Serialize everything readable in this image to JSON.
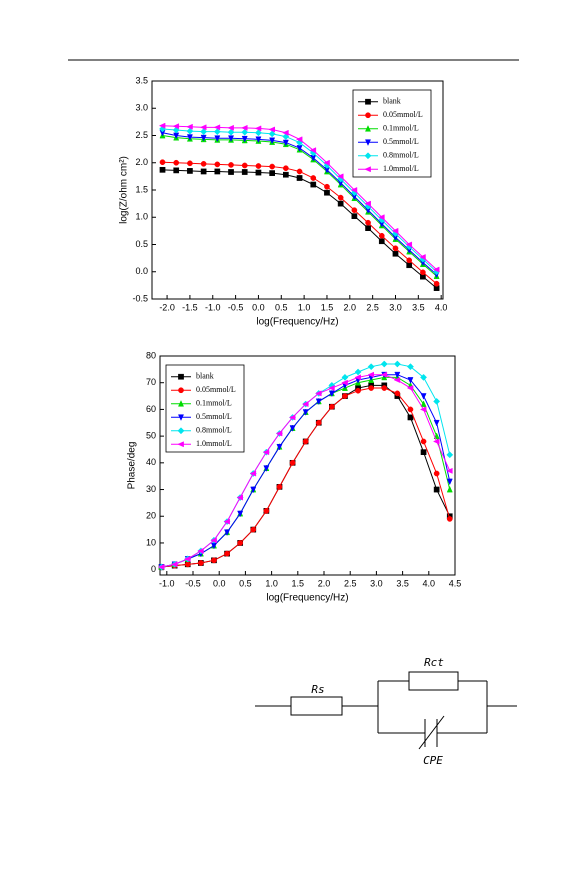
{
  "chart_data": [
    {
      "type": "line",
      "xlabel": "log(Frequency/Hz)",
      "ylabel": "log(Z/ohm cm²)",
      "xlim": [
        -2.33,
        4.04
      ],
      "ylim": [
        -0.5,
        3.5
      ],
      "xticks": [
        {
          "value": -2,
          "label": "-2.0"
        },
        -1.5,
        {
          "value": -1,
          "label": "-1.0"
        },
        -0.5,
        {
          "value": 0,
          "label": "0.0"
        },
        0.5,
        {
          "value": 1,
          "label": "1.0"
        },
        1.5,
        {
          "value": 2,
          "label": "2.0"
        },
        2.5,
        {
          "value": 3,
          "label": "3.0"
        },
        3.5,
        {
          "value": 4,
          "label": "4.0"
        }
      ],
      "yticks": [
        -0.5,
        {
          "value": 0,
          "label": "0.0"
        },
        0.5,
        {
          "value": 1,
          "label": "1.0"
        },
        1.5,
        {
          "value": 2,
          "label": "2.0"
        },
        2.5,
        {
          "value": 3,
          "label": "3.0"
        },
        3.5
      ],
      "legend": "upper right",
      "x": [
        -2.1,
        -1.8,
        -1.5,
        -1.2,
        -0.9,
        -0.6,
        -0.3,
        0,
        0.3,
        0.6,
        0.9,
        1.2,
        1.5,
        1.8,
        2.1,
        2.4,
        2.7,
        3.0,
        3.3,
        3.6,
        3.9
      ],
      "series": [
        {
          "name": "blank",
          "color": "#000000",
          "marker": "square",
          "values": [
            1.87,
            1.86,
            1.85,
            1.84,
            1.84,
            1.83,
            1.83,
            1.82,
            1.81,
            1.78,
            1.72,
            1.6,
            1.45,
            1.25,
            1.02,
            0.8,
            0.56,
            0.33,
            0.12,
            -0.09,
            -0.3
          ]
        },
        {
          "name": "0.05mmol/L",
          "color": "#ff0000",
          "marker": "circle",
          "values": [
            2.01,
            2.0,
            1.99,
            1.98,
            1.97,
            1.96,
            1.95,
            1.94,
            1.93,
            1.9,
            1.84,
            1.72,
            1.56,
            1.36,
            1.13,
            0.9,
            0.66,
            0.43,
            0.21,
            -0.01,
            -0.22
          ]
        },
        {
          "name": "0.1mmol/L",
          "color": "#00dd00",
          "marker": "triangle-up",
          "values": [
            2.5,
            2.46,
            2.44,
            2.43,
            2.42,
            2.42,
            2.41,
            2.4,
            2.38,
            2.34,
            2.24,
            2.06,
            1.84,
            1.6,
            1.35,
            1.1,
            0.85,
            0.6,
            0.37,
            0.14,
            -0.08
          ]
        },
        {
          "name": "0.5mmol/L",
          "color": "#0000ff",
          "marker": "triangle-down",
          "values": [
            2.55,
            2.5,
            2.47,
            2.46,
            2.45,
            2.45,
            2.44,
            2.43,
            2.41,
            2.37,
            2.27,
            2.09,
            1.87,
            1.63,
            1.38,
            1.13,
            0.88,
            0.63,
            0.4,
            0.17,
            -0.05
          ]
        },
        {
          "name": "0.8mmol/L",
          "color": "#00e5ee",
          "marker": "diamond",
          "values": [
            2.62,
            2.6,
            2.58,
            2.57,
            2.57,
            2.56,
            2.56,
            2.55,
            2.53,
            2.48,
            2.37,
            2.18,
            1.95,
            1.7,
            1.45,
            1.2,
            0.95,
            0.7,
            0.46,
            0.23,
            0.0
          ]
        },
        {
          "name": "1.0mmol/L",
          "color": "#ff00ff",
          "marker": "triangle-left",
          "values": [
            2.68,
            2.67,
            2.66,
            2.65,
            2.65,
            2.64,
            2.64,
            2.63,
            2.61,
            2.55,
            2.43,
            2.23,
            2.0,
            1.75,
            1.5,
            1.25,
            1.0,
            0.75,
            0.5,
            0.27,
            0.04
          ]
        }
      ]
    },
    {
      "type": "line",
      "xlabel": "log(Frequency/Hz)",
      "ylabel": "Phase/deg",
      "xlim": [
        -1.13,
        4.5
      ],
      "ylim": [
        -2,
        80
      ],
      "xticks": [
        {
          "value": -1,
          "label": "-1.0"
        },
        -0.5,
        {
          "value": 0,
          "label": "0.0"
        },
        0.5,
        {
          "value": 1,
          "label": "1.0"
        },
        1.5,
        {
          "value": 2,
          "label": "2.0"
        },
        2.5,
        {
          "value": 3,
          "label": "3.0"
        },
        3.5,
        {
          "value": 4,
          "label": "4.0"
        },
        4.5
      ],
      "yticks": [
        0,
        10,
        20,
        30,
        40,
        50,
        60,
        70,
        80
      ],
      "legend": "upper left",
      "x": [
        -1.1,
        -0.85,
        -0.6,
        -0.35,
        -0.1,
        0.15,
        0.4,
        0.65,
        0.9,
        1.15,
        1.4,
        1.65,
        1.9,
        2.15,
        2.4,
        2.65,
        2.9,
        3.15,
        3.4,
        3.65,
        3.9,
        4.15,
        4.4
      ],
      "series": [
        {
          "name": "blank",
          "color": "#000000",
          "marker": "square",
          "values": [
            1,
            1.5,
            2,
            2.5,
            3.5,
            6,
            10,
            15,
            22,
            31,
            40,
            48,
            55,
            61,
            65,
            68,
            69,
            69,
            65,
            57,
            44,
            30,
            20
          ]
        },
        {
          "name": "0.05mmol/L",
          "color": "#ff0000",
          "marker": "circle",
          "values": [
            1,
            1.5,
            2,
            2.5,
            3.5,
            6,
            10,
            15,
            22,
            31,
            40,
            48,
            55,
            61,
            65,
            67,
            68,
            68,
            66,
            60,
            48,
            36,
            19
          ]
        },
        {
          "name": "0.1mmol/L",
          "color": "#00dd00",
          "marker": "triangle-up",
          "values": [
            1,
            2,
            4,
            6,
            9,
            14,
            21,
            30,
            38,
            46,
            53,
            59,
            63,
            66,
            68,
            70,
            71,
            72,
            72,
            69,
            62,
            50,
            30
          ]
        },
        {
          "name": "0.5mmol/L",
          "color": "#0000ff",
          "marker": "triangle-down",
          "values": [
            1,
            2,
            4,
            6,
            9,
            14,
            21,
            30,
            38,
            46,
            53,
            59,
            63,
            66,
            69,
            71,
            72,
            73,
            73,
            71,
            65,
            55,
            33
          ]
        },
        {
          "name": "0.8mmol/L",
          "color": "#00e5ee",
          "marker": "diamond",
          "values": [
            1,
            2,
            4,
            7,
            11,
            18,
            27,
            36,
            44,
            51,
            57,
            62,
            66,
            69,
            72,
            74,
            76,
            77,
            77,
            76,
            72,
            63,
            43
          ]
        },
        {
          "name": "1.0mmol/L",
          "color": "#ff00ff",
          "marker": "triangle-left",
          "values": [
            1,
            2,
            4,
            7,
            11,
            18,
            27,
            36,
            44,
            51,
            57,
            62,
            66,
            68,
            70,
            72,
            73,
            73,
            71,
            68,
            60,
            48,
            37
          ]
        }
      ]
    }
  ],
  "circuit": {
    "rs": "Rs",
    "rct": "Rct",
    "cpe": "CPE"
  }
}
